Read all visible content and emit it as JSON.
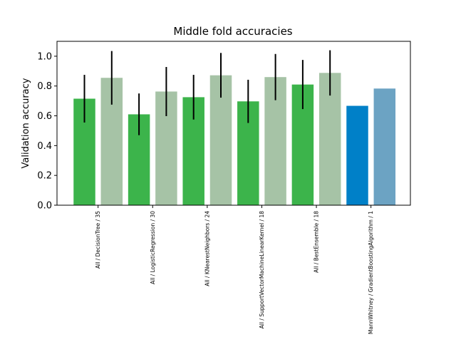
{
  "chart_data": {
    "type": "bar",
    "title": "Middle fold accuracies",
    "xlabel": "",
    "ylabel": "Validation accuracy",
    "ylim": [
      0,
      1.1
    ],
    "yticks": [
      0.0,
      0.2,
      0.4,
      0.6,
      0.8,
      1.0
    ],
    "ytick_labels": [
      "0.0",
      "0.2",
      "0.4",
      "0.6",
      "0.8",
      "1.0"
    ],
    "grid": false,
    "bars": [
      {
        "value": 0.715,
        "error": 0.16,
        "color": "#3cb44b"
      },
      {
        "value": 0.855,
        "error": 0.18,
        "color": "#a6c3a6"
      },
      {
        "value": 0.61,
        "error": 0.14,
        "color": "#3cb44b"
      },
      {
        "value": 0.763,
        "error": 0.165,
        "color": "#a6c3a6"
      },
      {
        "value": 0.725,
        "error": 0.15,
        "color": "#3cb44b"
      },
      {
        "value": 0.872,
        "error": 0.15,
        "color": "#a6c3a6"
      },
      {
        "value": 0.697,
        "error": 0.145,
        "color": "#3cb44b"
      },
      {
        "value": 0.86,
        "error": 0.155,
        "color": "#a6c3a6"
      },
      {
        "value": 0.81,
        "error": 0.165,
        "color": "#3cb44b"
      },
      {
        "value": 0.888,
        "error": 0.152,
        "color": "#a6c3a6"
      },
      {
        "value": 0.667,
        "error": null,
        "color": "#0080c8"
      },
      {
        "value": 0.783,
        "error": null,
        "color": "#6ca3c3"
      }
    ],
    "xtick_labels": [
      {
        "label": "All / DecisionTree / 35"
      },
      {
        "label": "All / LogisticRegression / 30"
      },
      {
        "label": "All / KNearestNeighbors / 24"
      },
      {
        "label": "All / SupportVectorMachineLinearKernel / 18"
      },
      {
        "label": "All / BestEnsemble / 18"
      },
      {
        "label": "MannWhitney / GradientBoostingAlgorithm / 1"
      }
    ]
  }
}
